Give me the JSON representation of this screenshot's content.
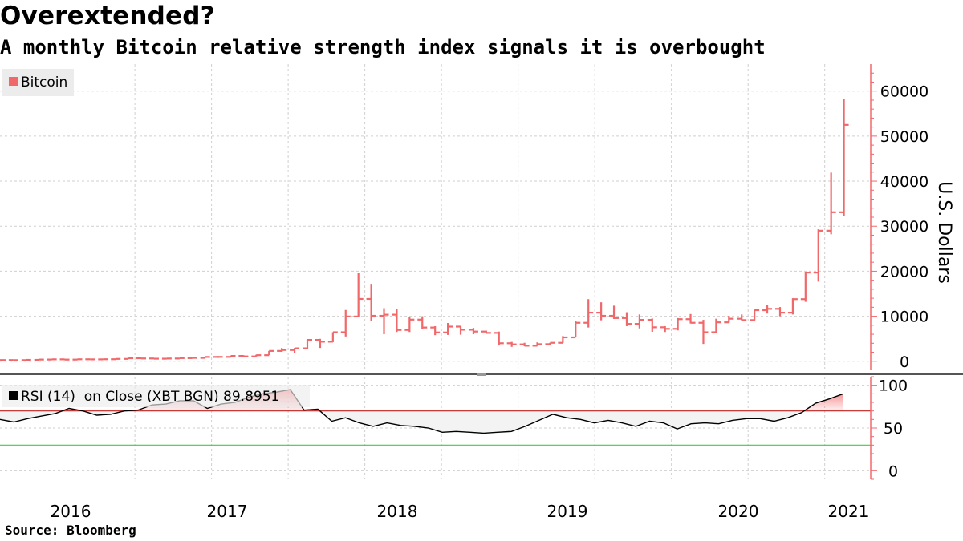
{
  "header": {
    "title": "Overextended?",
    "subtitle": "A monthly Bitcoin relative strength index signals it is overbought"
  },
  "footer": {
    "source": "Source:  Bloomberg"
  },
  "colors": {
    "price": "#f0686a",
    "rsi_line": "#000000",
    "rsi_fill": "#f26a6c",
    "overbought": "#c0201e",
    "oversold": "#3ccf3c",
    "grid": "#cfcfcf",
    "axis": "#f0686a",
    "divider": "#555555",
    "legend_bg": "#ececec"
  },
  "chart_data": [
    {
      "type": "ohlc",
      "title": "Bitcoin",
      "legend": "Bitcoin",
      "ylabel": "U.S. Dollars",
      "ylim": [
        -2000,
        66000
      ],
      "yticks": [
        0,
        10000,
        20000,
        30000,
        40000,
        50000,
        60000
      ],
      "ytick_labels": [
        "0",
        "10000",
        "20000",
        "30000",
        "40000",
        "50000",
        "60000"
      ],
      "x_ticks": [
        {
          "label": "2016",
          "t": 2016.0
        },
        {
          "label": "2017",
          "t": 2017.0
        },
        {
          "label": "2018",
          "t": 2018.0
        },
        {
          "label": "2019",
          "t": 2019.0
        },
        {
          "label": "2020",
          "t": 2020.0
        },
        {
          "label": "2021",
          "t": 2021.0
        }
      ],
      "x_gridlines": [
        2016.5,
        2017.0,
        2017.5,
        2018.0,
        2018.5,
        2019.0,
        2019.5,
        2020.0,
        2020.5,
        2021.0
      ],
      "start": {
        "year": 2015,
        "month": 8
      },
      "ohlc": [
        [
          280,
          290,
          260,
          270
        ],
        [
          270,
          280,
          240,
          255
        ],
        [
          255,
          320,
          250,
          310
        ],
        [
          310,
          500,
          300,
          380
        ],
        [
          380,
          470,
          350,
          430
        ],
        [
          430,
          440,
          350,
          370
        ],
        [
          370,
          440,
          360,
          440
        ],
        [
          440,
          450,
          400,
          420
        ],
        [
          420,
          470,
          410,
          450
        ],
        [
          450,
          550,
          440,
          530
        ],
        [
          530,
          780,
          520,
          670
        ],
        [
          670,
          770,
          600,
          620
        ],
        [
          620,
          630,
          540,
          570
        ],
        [
          570,
          620,
          560,
          610
        ],
        [
          610,
          740,
          600,
          700
        ],
        [
          700,
          760,
          690,
          750
        ],
        [
          750,
          1000,
          740,
          960
        ],
        [
          960,
          1150,
          750,
          970
        ],
        [
          970,
          1200,
          900,
          1190
        ],
        [
          1190,
          1350,
          1050,
          1080
        ],
        [
          1080,
          1450,
          1060,
          1350
        ],
        [
          1350,
          2300,
          1350,
          2300
        ],
        [
          2300,
          2950,
          2100,
          2500
        ],
        [
          2500,
          2950,
          1850,
          2880
        ],
        [
          2880,
          4750,
          2700,
          4750
        ],
        [
          4750,
          4980,
          2950,
          4340
        ],
        [
          4340,
          6450,
          4250,
          6450
        ],
        [
          6450,
          11400,
          5500,
          9950
        ],
        [
          9950,
          19600,
          9900,
          13850
        ],
        [
          13850,
          17200,
          9000,
          10100
        ],
        [
          10100,
          11800,
          6000,
          10350
        ],
        [
          10350,
          11600,
          6500,
          6950
        ],
        [
          6950,
          9800,
          6500,
          9250
        ],
        [
          9250,
          9990,
          7250,
          7500
        ],
        [
          7500,
          7800,
          5800,
          6400
        ],
        [
          6400,
          8500,
          5850,
          7700
        ],
        [
          7700,
          7750,
          5900,
          7000
        ],
        [
          7000,
          7400,
          6000,
          6600
        ],
        [
          6600,
          6800,
          6200,
          6300
        ],
        [
          6300,
          6600,
          3500,
          4000
        ],
        [
          4000,
          4300,
          3200,
          3750
        ],
        [
          3750,
          4100,
          3350,
          3450
        ],
        [
          3450,
          4200,
          3400,
          3800
        ],
        [
          3800,
          4100,
          3700,
          4100
        ],
        [
          4100,
          5600,
          4100,
          5300
        ],
        [
          5300,
          9000,
          5300,
          8550
        ],
        [
          8550,
          13800,
          7500,
          10800
        ],
        [
          10800,
          13100,
          9100,
          10100
        ],
        [
          10100,
          12350,
          9400,
          9600
        ],
        [
          9600,
          10900,
          7800,
          8300
        ],
        [
          8300,
          10400,
          7300,
          9200
        ],
        [
          9200,
          9500,
          6550,
          7550
        ],
        [
          7550,
          7800,
          6500,
          7200
        ],
        [
          7200,
          9600,
          6850,
          9350
        ],
        [
          9350,
          10500,
          8400,
          8550
        ],
        [
          8550,
          9200,
          3850,
          6450
        ],
        [
          6450,
          9450,
          6200,
          8650
        ],
        [
          8650,
          10100,
          8600,
          9450
        ],
        [
          9450,
          10400,
          9100,
          9150
        ],
        [
          9150,
          11450,
          9050,
          11350
        ],
        [
          11350,
          12450,
          10600,
          11650
        ],
        [
          11650,
          12050,
          10000,
          10800
        ],
        [
          10800,
          14000,
          10400,
          13800
        ],
        [
          13800,
          19900,
          13200,
          19700
        ],
        [
          19700,
          29300,
          17700,
          29000
        ],
        [
          29000,
          41900,
          28200,
          33100
        ],
        [
          33100,
          58300,
          32300,
          52500
        ]
      ]
    },
    {
      "type": "line",
      "title": "RSI",
      "legend": "RSI (14)  on Close (XBT BGN) 89.8951",
      "last_value": 89.8951,
      "ylim": [
        -10,
        110
      ],
      "yticks": [
        0,
        50,
        100
      ],
      "ytick_labels": [
        "0",
        "50",
        "100"
      ],
      "overbought": 70,
      "oversold": 30,
      "values": [
        60,
        57,
        61,
        64,
        67,
        73,
        70,
        65,
        66,
        70,
        71,
        77,
        78,
        82,
        82,
        73,
        78,
        80,
        86,
        90,
        92,
        95,
        71,
        72,
        58,
        62,
        56,
        52,
        56,
        53,
        52,
        50,
        45,
        46,
        45,
        44,
        45,
        46,
        52,
        59,
        66,
        62,
        60,
        56,
        59,
        56,
        52,
        58,
        56,
        49,
        55,
        56,
        55,
        59,
        61,
        61,
        58,
        62,
        68,
        79,
        84,
        89.8951
      ]
    }
  ]
}
